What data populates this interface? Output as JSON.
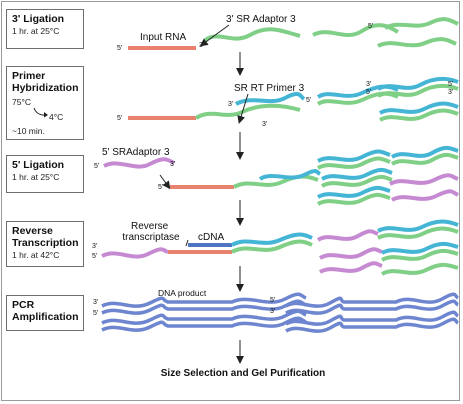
{
  "steps": [
    {
      "title": "3' Ligation",
      "sub": "1 hr. at 25°C"
    },
    {
      "title": "Primer\nHybridization",
      "sub": "75°C",
      "sub2": "4°C",
      "sub3": "~10 min."
    },
    {
      "title": "5' Ligation",
      "sub": "1 hr. at 25°C"
    },
    {
      "title": "Reverse\nTranscription",
      "sub": "1 hr. at 42°C"
    },
    {
      "title": "PCR\nAmplification",
      "sub": ""
    }
  ],
  "labels": {
    "input_rna": "Input RNA",
    "sr_adaptor_3": "3' SR Adaptor 3",
    "sr_rt_primer_3": "SR RT Primer 3",
    "sr_adaptor_5": "5' SRAdaptor 3",
    "reverse_transcriptase": "Reverse\ntranscriptase",
    "cdna": "cDNA",
    "dna_product": "DNA product",
    "final": "Size Selection and Gel Purification",
    "end_3": "3'",
    "end_5": "5'"
  },
  "colors": {
    "rna": "#e8826f",
    "adaptor_3": "#7fcf86",
    "rt_primer": "#45b5d6",
    "adaptor_5": "#c58ad2",
    "cdna": "#4f74c4",
    "dna_product": "#6d86cf",
    "box_border": "#6f6f6f"
  }
}
